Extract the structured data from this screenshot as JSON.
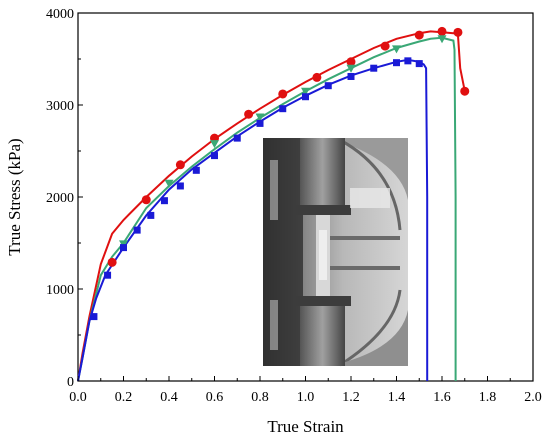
{
  "chart_data": {
    "type": "line",
    "xlabel": "True Strain",
    "ylabel": "True Stress (kPa)",
    "xlim": [
      0.0,
      2.0
    ],
    "ylim": [
      0,
      4000
    ],
    "xticks": [
      "0.0",
      "0.2",
      "0.4",
      "0.6",
      "0.8",
      "1.0",
      "1.2",
      "1.4",
      "1.6",
      "1.8",
      "2.0"
    ],
    "yticks": [
      "0",
      "1000",
      "2000",
      "3000",
      "4000"
    ],
    "grid": false,
    "legend": "none",
    "inset_photo": "tensile-test-specimen-photo",
    "series": [
      {
        "color": "#e01010",
        "marker": "circle",
        "x": [
          0,
          0.02,
          0.05,
          0.1,
          0.15,
          0.2,
          0.3,
          0.4,
          0.5,
          0.6,
          0.7,
          0.8,
          0.9,
          1.0,
          1.1,
          1.2,
          1.3,
          1.4,
          1.5,
          1.55,
          1.6,
          1.65,
          1.67,
          1.68,
          1.7
        ],
        "y": [
          0,
          300,
          700,
          1270,
          1600,
          1750,
          2000,
          2230,
          2440,
          2630,
          2800,
          2960,
          3110,
          3250,
          3380,
          3500,
          3620,
          3720,
          3780,
          3800,
          3790,
          3780,
          3770,
          3400,
          3150
        ],
        "marker_x": [
          0.15,
          0.3,
          0.45,
          0.6,
          0.75,
          0.9,
          1.05,
          1.2,
          1.35,
          1.5,
          1.6,
          1.67,
          1.7
        ],
        "marker_y": [
          1290,
          1970,
          2350,
          2640,
          2900,
          3120,
          3300,
          3470,
          3640,
          3760,
          3800,
          3790,
          3150
        ]
      },
      {
        "color": "#3aa876",
        "marker": "triangle-down",
        "x": [
          0,
          0.02,
          0.05,
          0.1,
          0.15,
          0.2,
          0.3,
          0.4,
          0.5,
          0.6,
          0.7,
          0.8,
          0.9,
          1.0,
          1.1,
          1.2,
          1.3,
          1.4,
          1.5,
          1.55,
          1.6,
          1.65,
          1.655,
          1.66,
          1.66
        ],
        "y": [
          0,
          250,
          650,
          1150,
          1350,
          1500,
          1880,
          2120,
          2330,
          2520,
          2700,
          2860,
          3010,
          3150,
          3280,
          3400,
          3520,
          3620,
          3690,
          3720,
          3730,
          3700,
          3600,
          2000,
          0
        ],
        "marker_x": [
          0.2,
          0.4,
          0.6,
          0.8,
          1.0,
          1.2,
          1.4,
          1.6
        ],
        "marker_y": [
          1490,
          2150,
          2580,
          2870,
          3150,
          3400,
          3610,
          3720
        ]
      },
      {
        "color": "#1a1ad6",
        "marker": "square",
        "x": [
          0,
          0.02,
          0.05,
          0.08,
          0.12,
          0.2,
          0.3,
          0.4,
          0.5,
          0.6,
          0.7,
          0.8,
          0.9,
          1.0,
          1.1,
          1.2,
          1.3,
          1.4,
          1.45,
          1.5,
          1.52,
          1.53,
          1.535,
          1.535
        ],
        "y": [
          0,
          250,
          650,
          900,
          1150,
          1450,
          1800,
          2080,
          2300,
          2480,
          2660,
          2820,
          2970,
          3100,
          3220,
          3320,
          3400,
          3470,
          3490,
          3470,
          3440,
          3400,
          2000,
          0
        ],
        "marker_x": [
          0.07,
          0.13,
          0.2,
          0.26,
          0.32,
          0.38,
          0.45,
          0.52,
          0.6,
          0.7,
          0.8,
          0.9,
          1.0,
          1.1,
          1.2,
          1.3,
          1.4,
          1.45,
          1.5
        ],
        "marker_y": [
          700,
          1150,
          1450,
          1640,
          1800,
          1960,
          2120,
          2290,
          2450,
          2640,
          2800,
          2960,
          3090,
          3210,
          3310,
          3400,
          3460,
          3480,
          3450
        ]
      }
    ]
  }
}
